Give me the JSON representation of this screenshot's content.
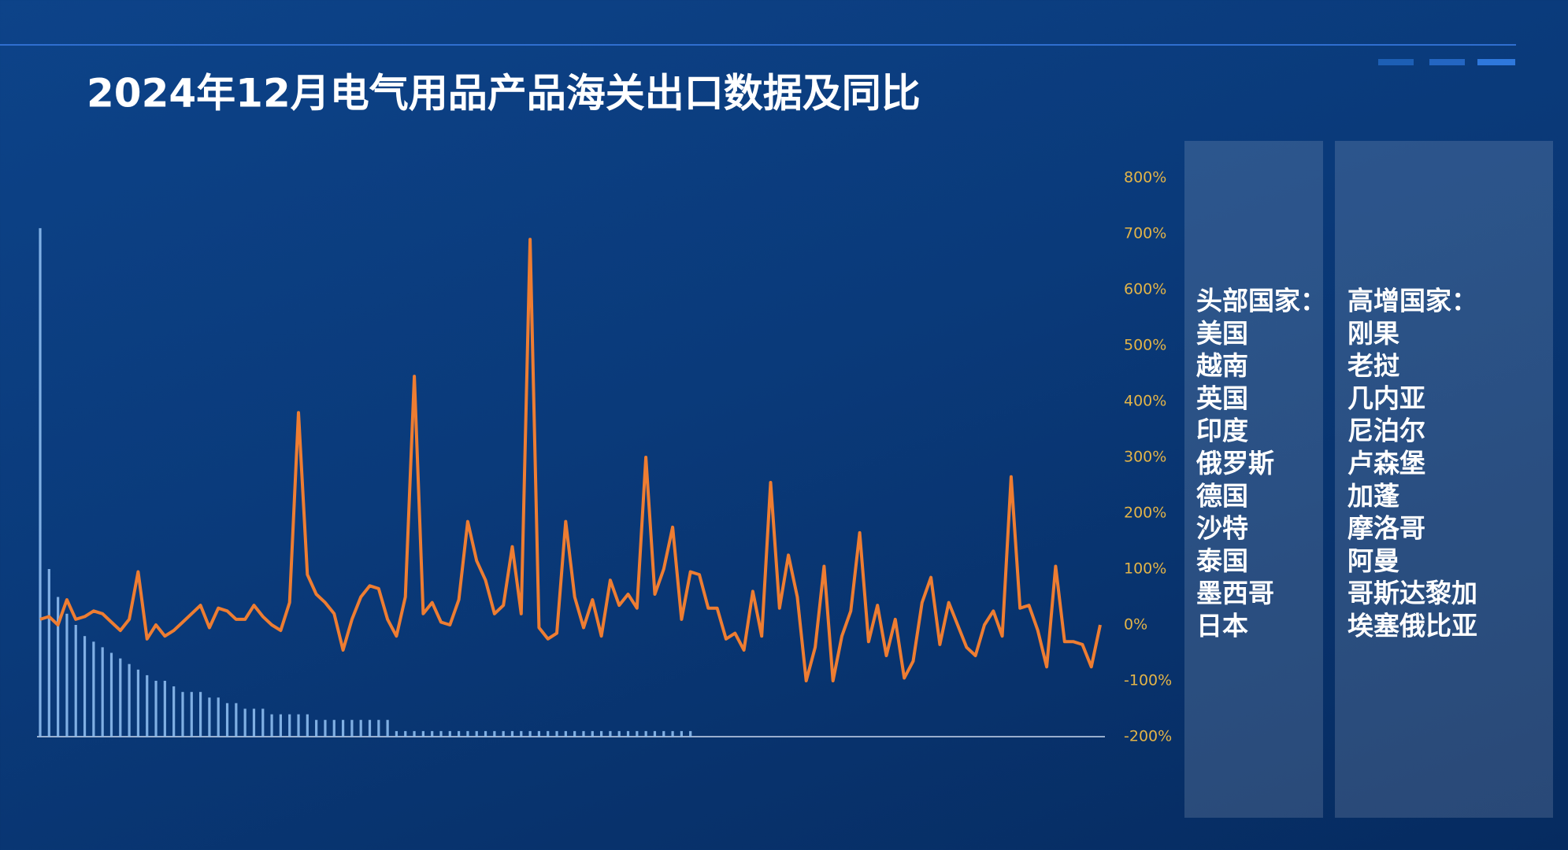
{
  "title": "2024年12月电气用品产品海关出口数据及同比",
  "chart_data": {
    "type": "combo",
    "categories": [
      null,
      null,
      null,
      null,
      null,
      null,
      null,
      null,
      null,
      null,
      null,
      null,
      null,
      null,
      null,
      null,
      null,
      null,
      null,
      null,
      null,
      null,
      null,
      null,
      null,
      null,
      null,
      null,
      null,
      null,
      null,
      null,
      null,
      null,
      null,
      null,
      null,
      null,
      null,
      null,
      null,
      null,
      null,
      null,
      null,
      null,
      null,
      null,
      null,
      null,
      null,
      null,
      null,
      null,
      null,
      null,
      null,
      null,
      null,
      null,
      null,
      null,
      null,
      null,
      null,
      null,
      null,
      null,
      null,
      null,
      null,
      null,
      null,
      null,
      null,
      null,
      null,
      null,
      null,
      null,
      null,
      null,
      null,
      null,
      null,
      null,
      null,
      null,
      null,
      null,
      null,
      null,
      null,
      null,
      null,
      null,
      null,
      null,
      null,
      null,
      null,
      null,
      null,
      null,
      null,
      null,
      null,
      null,
      null,
      null,
      null,
      null,
      null,
      null,
      null,
      null,
      null,
      null,
      null,
      null
    ],
    "series": [
      {
        "type": "bar",
        "axis": "y",
        "color": "#8dbcf0",
        "values": [
          91,
          30,
          25,
          22,
          20,
          18,
          17,
          16,
          15,
          14,
          13,
          12,
          11,
          10,
          10,
          9,
          8,
          8,
          8,
          7,
          7,
          6,
          6,
          5,
          5,
          5,
          4,
          4,
          4,
          4,
          4,
          3,
          3,
          3,
          3,
          3,
          3,
          3,
          3,
          3,
          1,
          1,
          1,
          1,
          1,
          1,
          1,
          1,
          1,
          1,
          1,
          1,
          1,
          1,
          1,
          1,
          1,
          1,
          1,
          1,
          1,
          1,
          1,
          1,
          1,
          1,
          1,
          1,
          1,
          1,
          1,
          1,
          1,
          1,
          null,
          null,
          null,
          null,
          null,
          null,
          null,
          null,
          null,
          null,
          null,
          null,
          null,
          null,
          null,
          null,
          null,
          null,
          null,
          null,
          null,
          null,
          null,
          null,
          null,
          null,
          null,
          null,
          null,
          null,
          null,
          null,
          null,
          null,
          null,
          null,
          null,
          null,
          null,
          null,
          null,
          null,
          null,
          null,
          null,
          null
        ]
      },
      {
        "type": "line",
        "axis": "y2",
        "color": "#ee7d32",
        "values": [
          10,
          15,
          0,
          45,
          10,
          15,
          25,
          20,
          5,
          -10,
          10,
          95,
          -25,
          0,
          -20,
          -10,
          5,
          20,
          35,
          -5,
          30,
          25,
          10,
          10,
          35,
          15,
          0,
          -10,
          40,
          380,
          90,
          55,
          40,
          20,
          -45,
          10,
          50,
          70,
          65,
          10,
          -20,
          50,
          445,
          20,
          40,
          5,
          0,
          45,
          185,
          115,
          80,
          20,
          35,
          140,
          20,
          690,
          -5,
          -25,
          -15,
          185,
          50,
          -5,
          45,
          -20,
          80,
          35,
          55,
          30,
          300,
          55,
          100,
          175,
          10,
          95,
          90,
          30,
          30,
          -25,
          -15,
          -45,
          60,
          -20,
          255,
          30,
          125,
          50,
          -100,
          -40,
          105,
          -100,
          -20,
          25,
          165,
          -30,
          35,
          -55,
          10,
          -95,
          -65,
          40,
          85,
          -35,
          40,
          0,
          -40,
          -55,
          0,
          25,
          -20,
          265,
          30,
          35,
          -10,
          -75,
          105,
          -30,
          -30,
          -35,
          -75,
          0
        ]
      }
    ],
    "ylim": [
      0,
      100
    ],
    "y2lim": [
      -200,
      800
    ],
    "y2ticks": [
      {
        "value": 800,
        "label": "800%"
      },
      {
        "value": 700,
        "label": "700%"
      },
      {
        "value": 600,
        "label": "600%"
      },
      {
        "value": 500,
        "label": "500%"
      },
      {
        "value": 400,
        "label": "400%"
      },
      {
        "value": 300,
        "label": "300%"
      },
      {
        "value": 200,
        "label": "200%"
      },
      {
        "value": 100,
        "label": "100%"
      },
      {
        "value": 0,
        "label": "0%"
      },
      {
        "value": -100,
        "label": "-100%"
      },
      {
        "value": -200,
        "label": "-200%"
      }
    ]
  },
  "panels": [
    {
      "title": "头部国家：",
      "items": [
        "美国",
        "越南",
        "英国",
        "印度",
        "俄罗斯",
        "德国",
        "沙特",
        "泰国",
        "墨西哥",
        "日本"
      ]
    },
    {
      "title": "高增国家：",
      "items": [
        "刚果",
        "老挝",
        "几内亚",
        "尼泊尔",
        "卢森堡",
        "加蓬",
        "摩洛哥",
        "阿曼",
        "哥斯达黎加",
        "埃塞俄比亚"
      ]
    }
  ]
}
